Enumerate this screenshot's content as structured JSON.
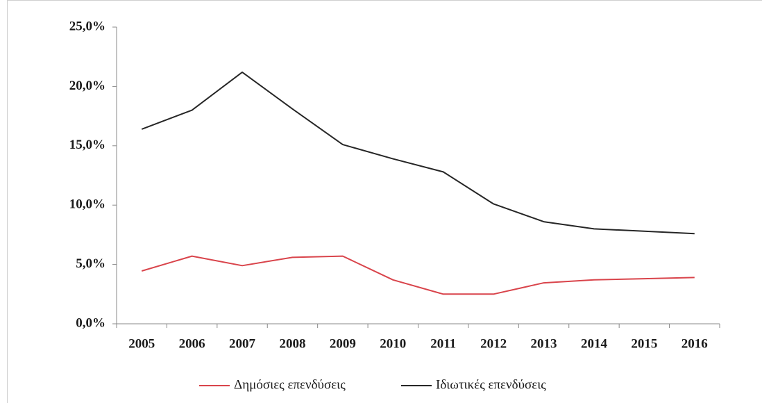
{
  "chart_data": {
    "type": "line",
    "categories": [
      "2005",
      "2006",
      "2007",
      "2008",
      "2009",
      "2010",
      "2011",
      "2012",
      "2013",
      "2014",
      "2015",
      "2016"
    ],
    "series": [
      {
        "name": "Δημόσιες επενδύσεις",
        "color": "#d9444b",
        "values": [
          4.45,
          5.7,
          4.9,
          5.6,
          5.7,
          3.7,
          2.5,
          2.5,
          3.45,
          3.7,
          3.8,
          3.9
        ]
      },
      {
        "name": "Ιδιωτικές επενδύσεις",
        "color": "#262626",
        "values": [
          16.4,
          18.0,
          21.2,
          18.1,
          15.1,
          13.9,
          12.8,
          10.1,
          8.6,
          8.0,
          7.8,
          7.6
        ]
      }
    ],
    "ylim": [
      0,
      25
    ],
    "yticks": [
      {
        "value": 0,
        "label": "0,0%"
      },
      {
        "value": 5,
        "label": "5,0%"
      },
      {
        "value": 10,
        "label": "10,0%"
      },
      {
        "value": 15,
        "label": "15,0%"
      },
      {
        "value": 20,
        "label": "20,0%"
      },
      {
        "value": 25,
        "label": "25,0%"
      }
    ],
    "grid": false,
    "legend": "bottom"
  }
}
